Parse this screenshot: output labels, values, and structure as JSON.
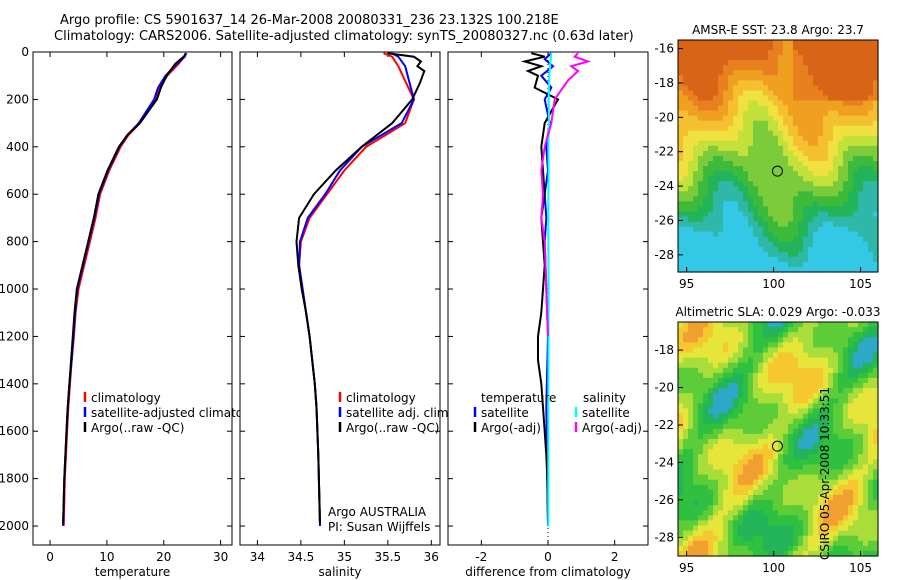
{
  "title": {
    "line1": "Argo profile: CS 5901637_14 26-Mar-2008 20080331_236 23.132S 100.218E",
    "line2": "Climatology: CARS2006. Satellite-adjusted climatology: synTS_20080327.nc (0.63d later)"
  },
  "side_stamp": "CSIRO 05-Apr-2008 10:33:51",
  "colors": {
    "red": "#ff0000",
    "blue": "#0000ff",
    "black": "#000000",
    "cyan": "#00ffff",
    "magenta": "#ff00ff"
  },
  "chart_data": [
    {
      "type": "line",
      "xlabel": "temperature",
      "xlim": [
        -3,
        32
      ],
      "ylim": [
        0,
        2080
      ],
      "y_reversed": true,
      "xticks": [
        0,
        10,
        20,
        30
      ],
      "yticks": [
        0,
        200,
        400,
        600,
        800,
        1000,
        1200,
        1400,
        1600,
        1800,
        2000
      ],
      "legend": [
        "climatology",
        "satellite-adjusted climatology",
        "Argo(..raw -QC)"
      ],
      "series": [
        {
          "name": "climatology",
          "color": "red",
          "x": [
            23.8,
            23.6,
            22.6,
            20.6,
            19.3,
            18.6,
            15.8,
            13.8,
            12.4,
            10.4,
            8.8,
            8.0,
            7.0,
            6.0,
            5.0,
            4.5,
            4.2,
            3.8,
            3.5,
            3.2,
            3.0,
            2.8,
            2.6,
            2.4
          ],
          "y": [
            5,
            20,
            50,
            100,
            150,
            200,
            300,
            350,
            400,
            500,
            600,
            700,
            800,
            900,
            1000,
            1100,
            1200,
            1300,
            1400,
            1500,
            1600,
            1700,
            1800,
            2000
          ]
        },
        {
          "name": "satellite-adjusted climatology",
          "color": "blue",
          "x": [
            23.9,
            23.7,
            22.3,
            20.3,
            19.0,
            18.3,
            15.6,
            13.6,
            12.2,
            10.2,
            8.6,
            7.8,
            6.8,
            5.8,
            4.8,
            4.4,
            4.1,
            3.8,
            3.4,
            3.1,
            2.9,
            2.7,
            2.5,
            2.3
          ],
          "y": [
            5,
            20,
            50,
            100,
            150,
            200,
            300,
            350,
            400,
            500,
            600,
            700,
            800,
            900,
            1000,
            1100,
            1200,
            1300,
            1400,
            1500,
            1600,
            1700,
            1800,
            2000
          ]
        },
        {
          "name": "Argo(..raw -QC)",
          "color": "black",
          "x": [
            24.0,
            23.5,
            22.0,
            20.5,
            19.5,
            18.8,
            15.8,
            13.6,
            12.1,
            10.1,
            8.5,
            7.7,
            6.7,
            5.7,
            4.7,
            4.3,
            4.0,
            3.7,
            3.4,
            3.1,
            2.9,
            2.7,
            2.5,
            2.3
          ],
          "y": [
            5,
            20,
            50,
            100,
            150,
            200,
            300,
            350,
            400,
            500,
            600,
            700,
            800,
            900,
            1000,
            1100,
            1200,
            1300,
            1400,
            1500,
            1600,
            1700,
            1800,
            1990
          ]
        }
      ]
    },
    {
      "type": "line",
      "xlabel": "salinity",
      "xlim": [
        33.8,
        36.1
      ],
      "ylim": [
        0,
        2080
      ],
      "y_reversed": true,
      "xticks": [
        34,
        34.5,
        35,
        35.5,
        36
      ],
      "yticks": [
        0,
        200,
        400,
        600,
        800,
        1000,
        1200,
        1400,
        1600,
        1800,
        2000
      ],
      "legend": [
        "climatology",
        "satellite adj. clim.",
        "Argo(..raw -QC)"
      ],
      "annotation": [
        "Argo AUSTRALIA",
        "PI: Susan Wijffels"
      ],
      "series": [
        {
          "name": "climatology",
          "color": "red",
          "x": [
            35.45,
            35.55,
            35.62,
            35.8,
            35.7,
            35.25,
            35.0,
            34.8,
            34.6,
            34.5,
            34.48,
            34.52,
            34.56,
            34.6,
            34.63,
            34.66,
            34.68,
            34.7,
            34.72
          ],
          "y": [
            5,
            20,
            60,
            200,
            300,
            400,
            500,
            600,
            700,
            800,
            900,
            1000,
            1100,
            1200,
            1300,
            1400,
            1500,
            1700,
            2000
          ]
        },
        {
          "name": "satellite adj. clim.",
          "color": "blue",
          "x": [
            35.55,
            35.62,
            35.7,
            35.8,
            35.66,
            35.2,
            34.95,
            34.78,
            34.58,
            34.49,
            34.48,
            34.52,
            34.56,
            34.6,
            34.63,
            34.66,
            34.68,
            34.7,
            34.72
          ],
          "y": [
            5,
            20,
            60,
            200,
            300,
            400,
            500,
            600,
            700,
            800,
            900,
            1000,
            1100,
            1200,
            1300,
            1400,
            1500,
            1700,
            2000
          ]
        },
        {
          "name": "Argo(..raw -QC)",
          "color": "black",
          "x": [
            35.5,
            35.8,
            35.88,
            35.84,
            35.92,
            35.87,
            35.78,
            35.55,
            35.2,
            34.9,
            34.65,
            34.48,
            34.45,
            34.47,
            34.51,
            34.56,
            34.6,
            34.63,
            34.66,
            34.68,
            34.7,
            34.72
          ],
          "y": [
            5,
            20,
            40,
            60,
            80,
            130,
            200,
            300,
            400,
            500,
            600,
            700,
            800,
            900,
            1000,
            1100,
            1200,
            1300,
            1400,
            1500,
            1700,
            1990
          ]
        }
      ]
    },
    {
      "type": "line",
      "xlabel": "difference from climatology",
      "xlim": [
        -3,
        3
      ],
      "ylim": [
        0,
        2080
      ],
      "y_reversed": true,
      "xticks": [
        -2,
        0,
        2
      ],
      "yticks": [
        0,
        200,
        400,
        600,
        800,
        1000,
        1200,
        1400,
        1600,
        1800,
        2000
      ],
      "legend_left_title": "temperature",
      "legend_left": [
        "satellite",
        "Argo(-adj)"
      ],
      "legend_right_title": "salinity",
      "legend_right": [
        "satellite",
        "Argo(-adj)"
      ],
      "series": [
        {
          "name": "temperature satellite",
          "color": "blue",
          "x": [
            0.1,
            -0.1,
            0.15,
            -0.2,
            0.1,
            -0.1,
            0.05,
            -0.05,
            0,
            -0.1,
            -0.05,
            -0.1,
            -0.05,
            0,
            -0.05,
            0
          ],
          "y": [
            5,
            30,
            60,
            100,
            150,
            200,
            300,
            400,
            500,
            600,
            700,
            800,
            1000,
            1200,
            1500,
            2000
          ]
        },
        {
          "name": "temperature Argo(-adj)",
          "color": "black",
          "x": [
            -0.5,
            -0.1,
            -0.7,
            -0.2,
            -0.6,
            -0.3,
            -0.4,
            0.3,
            0.1,
            -0.1,
            -0.2,
            -0.15,
            -0.1,
            -0.2,
            -0.15,
            -0.1,
            -0.15,
            -0.2,
            -0.3,
            -0.3,
            -0.2,
            -0.15,
            -0.1,
            -0.05,
            -0.02,
            0
          ],
          "y": [
            5,
            20,
            40,
            60,
            80,
            100,
            150,
            200,
            250,
            300,
            400,
            500,
            600,
            700,
            800,
            900,
            1000,
            1100,
            1200,
            1300,
            1400,
            1500,
            1600,
            1700,
            1800,
            1990
          ]
        },
        {
          "name": "salinity satellite",
          "color": "cyan",
          "x": [
            0.1,
            0.07,
            0.04,
            0.02,
            0.03,
            0.01,
            0.02,
            0.01,
            0.01,
            0.02,
            0.01,
            0.01
          ],
          "y": [
            5,
            50,
            100,
            200,
            300,
            400,
            500,
            600,
            800,
            1000,
            1500,
            2000
          ]
        },
        {
          "name": "salinity Argo(-adj)",
          "color": "magenta",
          "x": [
            0.9,
            0.8,
            1.2,
            0.7,
            0.9,
            0.6,
            0.4,
            0.2,
            0.1,
            -0.1,
            -0.2,
            -0.15,
            -0.2,
            -0.1,
            -0.05,
            0
          ],
          "y": [
            5,
            20,
            40,
            60,
            80,
            120,
            160,
            200,
            300,
            400,
            500,
            600,
            700,
            800,
            1000,
            1200
          ]
        }
      ]
    },
    {
      "type": "heatmap",
      "title": "AMSR-E SST: 23.8 Argo: 23.7",
      "xlim": [
        94.5,
        106
      ],
      "ylim": [
        -29,
        -15.5
      ],
      "xticks": [
        95,
        100,
        105
      ],
      "yticks": [
        -16,
        -18,
        -20,
        -22,
        -24,
        -26,
        -28
      ],
      "marker": {
        "lon": 100.218,
        "lat": -23.132
      }
    },
    {
      "type": "heatmap",
      "title": "Altimetric SLA: 0.029 Argo: -0.033",
      "xlim": [
        94.5,
        106
      ],
      "ylim": [
        -29,
        -16.5
      ],
      "xticks": [
        95,
        100,
        105
      ],
      "yticks": [
        -18,
        -20,
        -22,
        -24,
        -26,
        -28
      ],
      "marker": {
        "lon": 100.218,
        "lat": -23.132
      }
    }
  ]
}
